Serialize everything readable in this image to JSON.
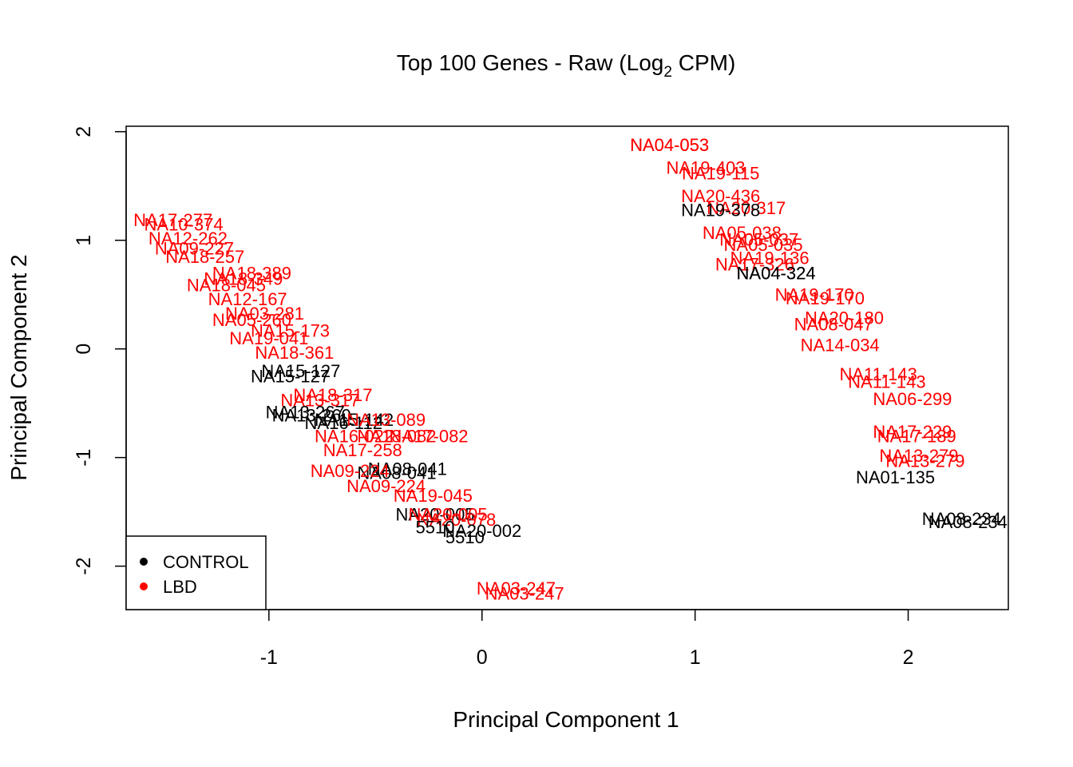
{
  "chart_data": {
    "type": "scatter",
    "title": {
      "pre": "Top 100 Genes - Raw (Log",
      "sub": "2",
      "post": " CPM)"
    },
    "xlabel": "Principal Component 1",
    "ylabel": "Principal Component 2",
    "xlim": [
      -1.67,
      2.47
    ],
    "ylim": [
      -2.4,
      2.05
    ],
    "x_ticks": [
      -1,
      0,
      1,
      2
    ],
    "y_ticks": [
      -2,
      -1,
      0,
      1,
      2
    ],
    "grid": false,
    "legend": {
      "position": "bottom-left",
      "entries": [
        {
          "label": "CONTROL",
          "color": "#000000"
        },
        {
          "label": "LBD",
          "color": "#ff0000"
        }
      ]
    },
    "colors": {
      "CONTROL": "#000000",
      "LBD": "#ff0000"
    },
    "points": [
      {
        "label": "NA04-053",
        "group": "LBD",
        "x": 0.88,
        "y": 1.88
      },
      {
        "label": "NA04-053",
        "group": "LBD",
        "x": 0.88,
        "y": 1.88
      },
      {
        "label": "NA19-403",
        "group": "LBD",
        "x": 1.05,
        "y": 1.67
      },
      {
        "label": "NA19-115",
        "group": "LBD",
        "x": 1.12,
        "y": 1.62
      },
      {
        "label": "NA20-436",
        "group": "LBD",
        "x": 1.12,
        "y": 1.41
      },
      {
        "label": "NA20-317",
        "group": "LBD",
        "x": 1.24,
        "y": 1.3
      },
      {
        "label": "NA19-378",
        "group": "CONTROL",
        "x": 1.12,
        "y": 1.28
      },
      {
        "label": "NA05-038",
        "group": "LBD",
        "x": 1.22,
        "y": 1.07
      },
      {
        "label": "NA05-037",
        "group": "LBD",
        "x": 1.3,
        "y": 1.01
      },
      {
        "label": "NA05-035",
        "group": "LBD",
        "x": 1.32,
        "y": 0.96
      },
      {
        "label": "NA19-136",
        "group": "LBD",
        "x": 1.35,
        "y": 0.84
      },
      {
        "label": "NA17-326",
        "group": "LBD",
        "x": 1.28,
        "y": 0.78
      },
      {
        "label": "NA04-324",
        "group": "CONTROL",
        "x": 1.38,
        "y": 0.7
      },
      {
        "label": "NA04-324",
        "group": "CONTROL",
        "x": 1.38,
        "y": 0.7
      },
      {
        "label": "NA19-170",
        "group": "LBD",
        "x": 1.56,
        "y": 0.5
      },
      {
        "label": "NA19-170",
        "group": "LBD",
        "x": 1.61,
        "y": 0.47
      },
      {
        "label": "NA20-180",
        "group": "LBD",
        "x": 1.7,
        "y": 0.29
      },
      {
        "label": "NA08-047",
        "group": "LBD",
        "x": 1.65,
        "y": 0.23
      },
      {
        "label": "NA14-034",
        "group": "LBD",
        "x": 1.68,
        "y": 0.04
      },
      {
        "label": "NA11-143",
        "group": "LBD",
        "x": 1.86,
        "y": -0.23
      },
      {
        "label": "NA11-143",
        "group": "LBD",
        "x": 1.9,
        "y": -0.3
      },
      {
        "label": "NA06-299",
        "group": "LBD",
        "x": 2.02,
        "y": -0.46
      },
      {
        "label": "NA17-229",
        "group": "LBD",
        "x": 2.02,
        "y": -0.76
      },
      {
        "label": "NA17-189",
        "group": "LBD",
        "x": 2.04,
        "y": -0.8
      },
      {
        "label": "NA13-279",
        "group": "LBD",
        "x": 2.05,
        "y": -0.98
      },
      {
        "label": "NA13-279",
        "group": "LBD",
        "x": 2.08,
        "y": -1.03
      },
      {
        "label": "NA01-135",
        "group": "CONTROL",
        "x": 1.94,
        "y": -1.18
      },
      {
        "label": "NA08-234",
        "group": "CONTROL",
        "x": 2.25,
        "y": -1.56
      },
      {
        "label": "NA08-234",
        "group": "CONTROL",
        "x": 2.28,
        "y": -1.59
      },
      {
        "label": "NA17-277",
        "group": "LBD",
        "x": -1.45,
        "y": 1.19
      },
      {
        "label": "NA10-374",
        "group": "LBD",
        "x": -1.4,
        "y": 1.15
      },
      {
        "label": "NA12-262",
        "group": "LBD",
        "x": -1.38,
        "y": 1.02
      },
      {
        "label": "NA09-227",
        "group": "LBD",
        "x": -1.35,
        "y": 0.93
      },
      {
        "label": "NA18-257",
        "group": "LBD",
        "x": -1.3,
        "y": 0.85
      },
      {
        "label": "NA18-389",
        "group": "LBD",
        "x": -1.08,
        "y": 0.7
      },
      {
        "label": "NA18-349",
        "group": "LBD",
        "x": -1.12,
        "y": 0.65
      },
      {
        "label": "NA18-045",
        "group": "LBD",
        "x": -1.2,
        "y": 0.59
      },
      {
        "label": "NA12-167",
        "group": "LBD",
        "x": -1.1,
        "y": 0.46
      },
      {
        "label": "NA03-281",
        "group": "LBD",
        "x": -1.02,
        "y": 0.33
      },
      {
        "label": "NA05-260",
        "group": "LBD",
        "x": -1.08,
        "y": 0.27
      },
      {
        "label": "NA15-173",
        "group": "LBD",
        "x": -0.9,
        "y": 0.17
      },
      {
        "label": "NA19-041",
        "group": "LBD",
        "x": -1.0,
        "y": 0.1
      },
      {
        "label": "NA18-361",
        "group": "LBD",
        "x": -0.88,
        "y": -0.03
      },
      {
        "label": "NA15-127",
        "group": "CONTROL",
        "x": -0.85,
        "y": -0.2
      },
      {
        "label": "NA15-127",
        "group": "CONTROL",
        "x": -0.9,
        "y": -0.25
      },
      {
        "label": "NA18-317",
        "group": "LBD",
        "x": -0.7,
        "y": -0.42
      },
      {
        "label": "NA13-317",
        "group": "LBD",
        "x": -0.76,
        "y": -0.47
      },
      {
        "label": "NA13-267",
        "group": "CONTROL",
        "x": -0.83,
        "y": -0.58
      },
      {
        "label": "NA13-260",
        "group": "CONTROL",
        "x": -0.8,
        "y": -0.61
      },
      {
        "label": "NA15-142",
        "group": "CONTROL",
        "x": -0.6,
        "y": -0.65
      },
      {
        "label": "NA16-112",
        "group": "CONTROL",
        "x": -0.65,
        "y": -0.68
      },
      {
        "label": "NA13-089",
        "group": "LBD",
        "x": -0.45,
        "y": -0.65
      },
      {
        "label": "NA18-082",
        "group": "LBD",
        "x": -0.4,
        "y": -0.8
      },
      {
        "label": "NA16-022",
        "group": "LBD",
        "x": -0.6,
        "y": -0.8
      },
      {
        "label": "NA17-082",
        "group": "LBD",
        "x": -0.25,
        "y": -0.8
      },
      {
        "label": "NA17-258",
        "group": "LBD",
        "x": -0.56,
        "y": -0.93
      },
      {
        "label": "NA08-041",
        "group": "CONTROL",
        "x": -0.35,
        "y": -1.1
      },
      {
        "label": "NA08-041",
        "group": "CONTROL",
        "x": -0.4,
        "y": -1.14
      },
      {
        "label": "NA09-224",
        "group": "LBD",
        "x": -0.62,
        "y": -1.12
      },
      {
        "label": "NA09-224",
        "group": "LBD",
        "x": -0.45,
        "y": -1.26
      },
      {
        "label": "NA19-045",
        "group": "LBD",
        "x": -0.23,
        "y": -1.35
      },
      {
        "label": "NA20-005",
        "group": "CONTROL",
        "x": -0.22,
        "y": -1.52
      },
      {
        "label": "NA20-005",
        "group": "LBD",
        "x": -0.16,
        "y": -1.52
      },
      {
        "label": "NA20-078",
        "group": "LBD",
        "x": -0.12,
        "y": -1.57
      },
      {
        "label": "NA20-002",
        "group": "CONTROL",
        "x": 0.0,
        "y": -1.67
      },
      {
        "label": "5510",
        "group": "CONTROL",
        "x": -0.22,
        "y": -1.64
      },
      {
        "label": "5510",
        "group": "CONTROL",
        "x": -0.08,
        "y": -1.73
      },
      {
        "label": "NA03-247",
        "group": "LBD",
        "x": 0.16,
        "y": -2.2
      },
      {
        "label": "NA03-247",
        "group": "LBD",
        "x": 0.2,
        "y": -2.25
      }
    ]
  }
}
